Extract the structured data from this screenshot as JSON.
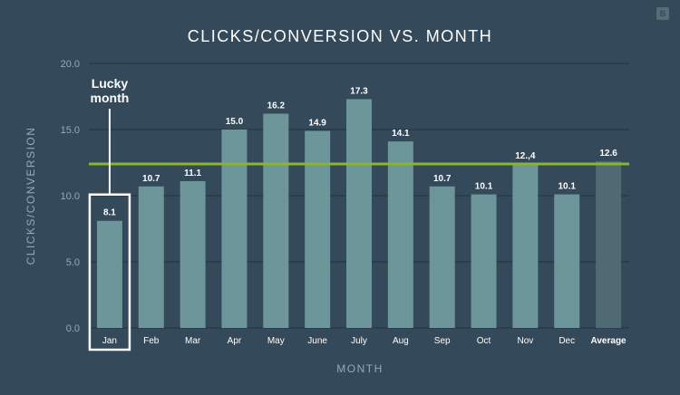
{
  "badge": {
    "label": "B"
  },
  "chart_data": {
    "type": "bar",
    "title": "CLICKS/CONVERSION VS. MONTH",
    "xlabel": "MONTH",
    "ylabel": "CLICKS/CONVERSION",
    "ylim": [
      0,
      20
    ],
    "yticks": [
      "0.0",
      "5.0",
      "10.0",
      "15.0",
      "20.0"
    ],
    "grid": true,
    "categories": [
      "Jan",
      "Feb",
      "Mar",
      "Apr",
      "May",
      "June",
      "July",
      "Aug",
      "Sep",
      "Oct",
      "Nov",
      "Dec",
      "Average"
    ],
    "values": [
      8.1,
      10.7,
      11.1,
      15.0,
      16.2,
      14.9,
      17.3,
      14.1,
      10.7,
      10.1,
      12.4,
      10.1,
      12.6
    ],
    "value_labels": [
      "8.1",
      "10.7",
      "11.1",
      "15.0",
      "16.2",
      "14.9",
      "17.3",
      "14.1",
      "10.7",
      "10.1",
      "12.,4",
      "10.1",
      "12.6"
    ],
    "reference_line": {
      "value": 12.4,
      "color": "#8ab52c"
    },
    "highlight": {
      "category": "Jan",
      "label": "Lucky month"
    },
    "colors": {
      "bar": "#6c9699",
      "average_bar": "#4f6a73",
      "text": "#ffffff",
      "axis_text": "#9aa8b2",
      "grid": "#22333f"
    }
  }
}
